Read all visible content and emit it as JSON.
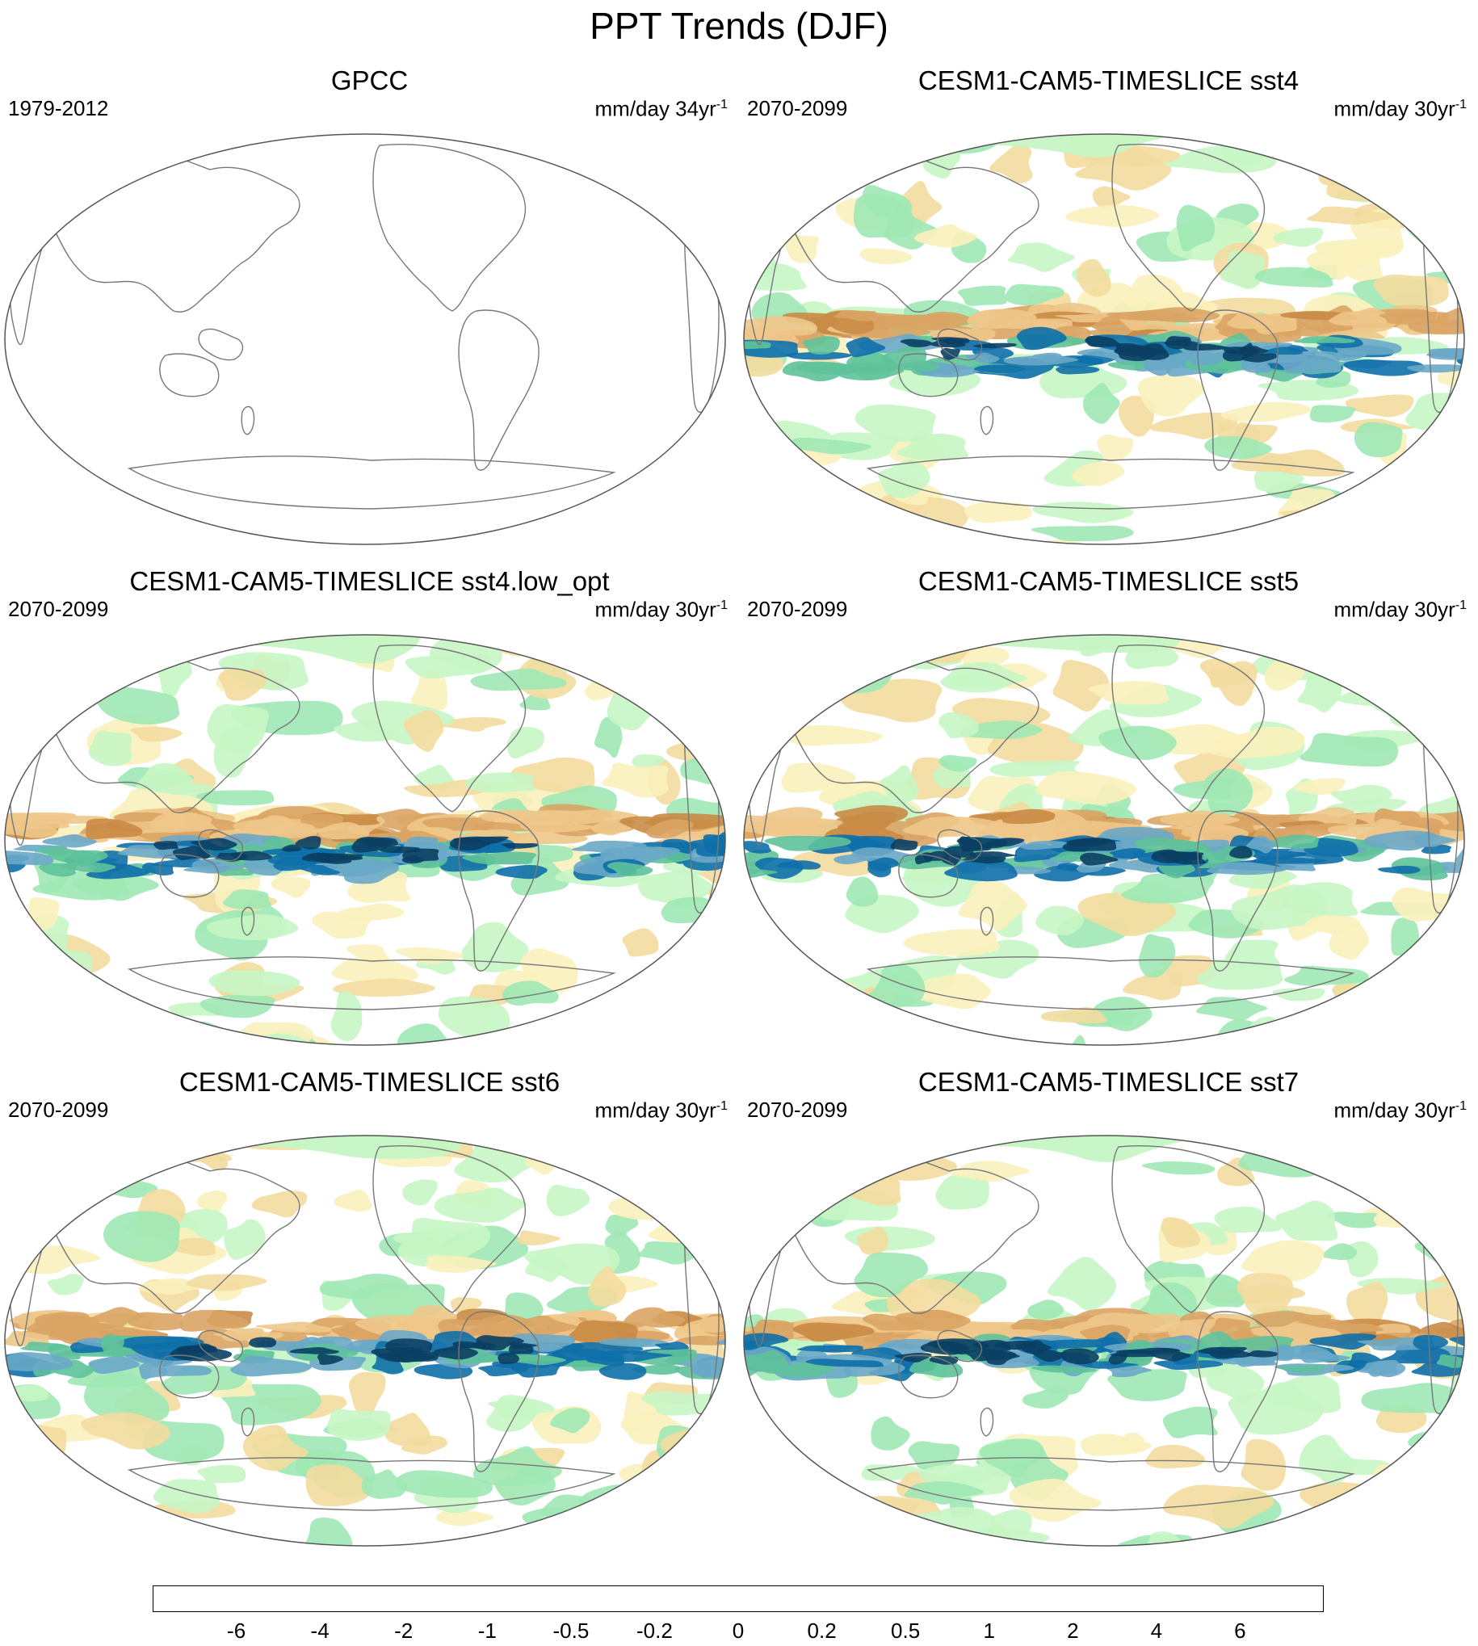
{
  "title": "PPT Trends (DJF)",
  "panels": [
    {
      "title": "GPCC",
      "period": "1979-2012",
      "units": "mm/day 34yr",
      "units_sup": "-1",
      "empty": true
    },
    {
      "title": "CESM1-CAM5-TIMESLICE sst4",
      "period": "2070-2099",
      "units": "mm/day 30yr",
      "units_sup": "-1",
      "empty": false
    },
    {
      "title": "CESM1-CAM5-TIMESLICE sst4.low_opt",
      "period": "2070-2099",
      "units": "mm/day 30yr",
      "units_sup": "-1",
      "empty": false
    },
    {
      "title": "CESM1-CAM5-TIMESLICE sst5",
      "period": "2070-2099",
      "units": "mm/day 30yr",
      "units_sup": "-1",
      "empty": false
    },
    {
      "title": "CESM1-CAM5-TIMESLICE sst6",
      "period": "2070-2099",
      "units": "mm/day 30yr",
      "units_sup": "-1",
      "empty": false
    },
    {
      "title": "CESM1-CAM5-TIMESLICE sst7",
      "period": "2070-2099",
      "units": "mm/day 30yr",
      "units_sup": "-1",
      "empty": false
    }
  ],
  "colorbar": {
    "colors": [
      "#b5692a",
      "#c98b45",
      "#d9a464",
      "#eec68a",
      "#f3dc9f",
      "#fbf1bd",
      "#ffffff",
      "#ffffff",
      "#c6f6c4",
      "#9ee8b4",
      "#5ec29a",
      "#6aa9c8",
      "#0e6fa8",
      "#0a3f63"
    ],
    "labels": [
      "-6",
      "-4",
      "-2",
      "-1",
      "-0.5",
      "-0.2",
      "0",
      "0.2",
      "0.5",
      "1",
      "2",
      "4",
      "6"
    ]
  }
}
